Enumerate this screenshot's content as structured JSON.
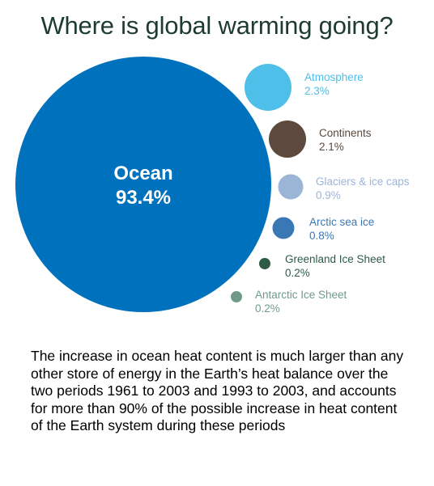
{
  "title": "Where is global warming going?",
  "caption": "The increase in ocean heat content is much larger than any other store of energy in the Earth’s heat balance over the two periods 1961 to 2003 and 1993 to 2003, and accounts for more than 90% of the possible increase in heat content of the Earth system during these periods",
  "chart_data": {
    "type": "bubble",
    "title": "Where is global warming going?",
    "unit": "%",
    "items": [
      {
        "label": "Ocean",
        "value": 93.4,
        "value_label": "93.4%",
        "color": "#0071bc"
      },
      {
        "label": "Atmosphere",
        "value": 2.3,
        "value_label": "2.3%",
        "color": "#4ebfe9"
      },
      {
        "label": "Continents",
        "value": 2.1,
        "value_label": "2.1%",
        "color": "#5b4a3d"
      },
      {
        "label": "Glaciers & ice caps",
        "value": 0.9,
        "value_label": "0.9%",
        "color": "#9bb5d7"
      },
      {
        "label": "Arctic sea ice",
        "value": 0.8,
        "value_label": "0.8%",
        "color": "#3a77b5"
      },
      {
        "label": "Greenland Ice Sheet",
        "value": 0.2,
        "value_label": "0.2%",
        "color": "#2d5b46"
      },
      {
        "label": "Antarctic Ice Sheet",
        "value": 0.2,
        "value_label": "0.2%",
        "color": "#6f9a88"
      }
    ]
  }
}
